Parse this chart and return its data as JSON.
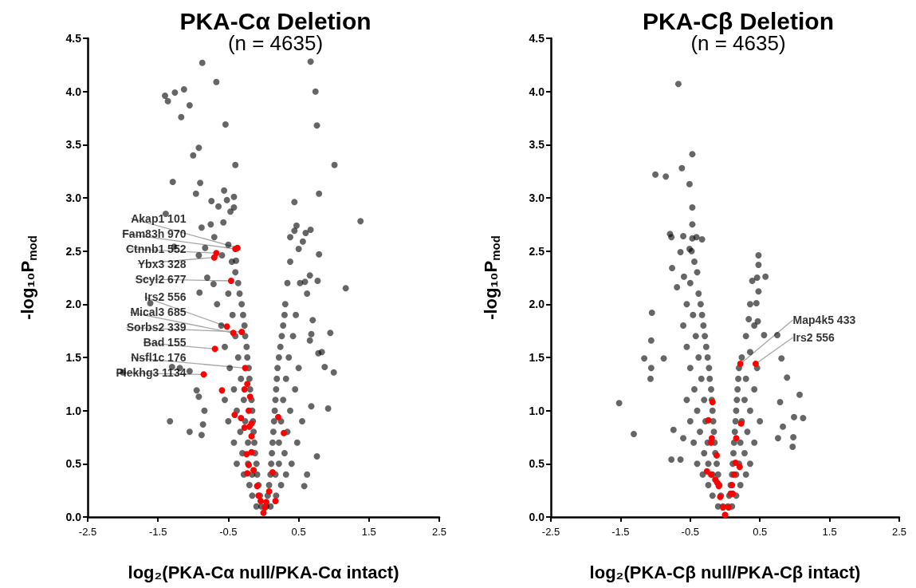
{
  "chart_data": [
    {
      "type": "scatter",
      "title": "PKA-Cα Deletion",
      "subtitle": "(n = 4635)",
      "xlabel": "log₂(PKA-Cα null/PKA-Cα intact)",
      "ylabel": "-log₁₀P$_{mod}$",
      "xlim": [
        -2.5,
        2.5
      ],
      "ylim": [
        0,
        4.5
      ],
      "xticks": [
        -2.5,
        -1.5,
        -0.5,
        0.5,
        1.5,
        2.5
      ],
      "yticks": [
        {
          "value": 0,
          "label": "0.0"
        },
        {
          "value": 0.5,
          "label": "0.5"
        },
        {
          "value": 1,
          "label": "1.0"
        },
        {
          "value": 1.5,
          "label": "1.5"
        },
        {
          "value": 2,
          "label": "2.0"
        },
        {
          "value": 2.5,
          "label": "2.5"
        },
        {
          "value": 3,
          "label": "3.0"
        },
        {
          "value": 3.5,
          "label": "3.5"
        },
        {
          "value": 4,
          "label": "4.0"
        },
        {
          "value": 4.5,
          "label": "4.5"
        }
      ],
      "grid": false,
      "marker": "circle",
      "series": [
        {
          "color": "#000000",
          "x": [
            -0.87,
            0.67,
            -0.67,
            -1.4,
            -1.36,
            -1.26,
            -1.13,
            -1.05,
            -1.17,
            0.74,
            0.76,
            -0.54,
            -0.92,
            -1.0,
            -0.4,
            1.01,
            -1.29,
            -0.9,
            -0.96,
            -0.56,
            -0.42,
            -0.52,
            -0.74,
            -0.64,
            -0.42,
            -0.47,
            0.44,
            0.79,
            -1.39,
            -0.57,
            -0.88,
            -0.75,
            1.38,
            0.47,
            0.44,
            0.67,
            0.6,
            0.38,
            0.56,
            0.5,
            0.79,
            -1.27,
            -0.7,
            -0.5,
            -0.83,
            -0.92,
            -0.59,
            -0.39,
            -0.8,
            -0.71,
            -0.91,
            1.17,
            0.66,
            0.77,
            0.59,
            0.52,
            0.62,
            -1.61,
            0.95,
            1.0,
            0.87,
            0.83,
            0.78,
            0.68,
            0.66,
            0.7,
            -2.0,
            -1.3,
            -1.19,
            -1.05,
            -0.95,
            -0.92,
            -0.84,
            -1.33,
            -1.05,
            -0.88,
            -0.86,
            0.92,
            0.68,
            0.76,
            0.62,
            0.58,
            -0.03,
            -0.1,
            -0.05,
            -0.16,
            -0.07,
            -0.2,
            -0.09,
            -0.16,
            -0.28,
            -0.1,
            -0.22,
            -0.38,
            -0.12,
            -0.3,
            -0.13,
            -0.22,
            -0.42,
            -0.14,
            -0.33,
            -0.15,
            -0.26,
            -0.5,
            -0.16,
            -0.38,
            -0.17,
            -0.28,
            -0.55,
            -0.19,
            -0.42,
            -0.2,
            -0.32,
            -0.21,
            -0.48,
            -0.23,
            -0.36,
            -0.24,
            -0.55,
            -0.26,
            -0.4,
            -0.27,
            -0.6,
            -0.29,
            -0.44,
            -0.31,
            -0.66,
            -0.34,
            -0.5,
            -0.36,
            -0.4,
            -0.45,
            0.04,
            0.1,
            0.06,
            0.18,
            0.08,
            0.25,
            0.1,
            0.17,
            0.32,
            0.11,
            0.22,
            0.4,
            0.12,
            0.3,
            0.13,
            0.22,
            0.48,
            0.14,
            0.34,
            0.15,
            0.25,
            0.55,
            0.16,
            0.38,
            0.17,
            0.28,
            0.18,
            0.45,
            0.19,
            0.32,
            0.2,
            0.5,
            0.22,
            0.36,
            0.24,
            0.26,
            0.42,
            0.28,
            0.3,
            0.46,
            0.31,
            0.34,
            0.38
          ],
          "values": [
            4.27,
            4.28,
            4.09,
            3.96,
            3.91,
            3.99,
            4.02,
            3.87,
            3.76,
            4.0,
            3.68,
            3.69,
            3.47,
            3.4,
            3.31,
            3.31,
            3.15,
            3.14,
            3.04,
            3.07,
            3.01,
            2.98,
            2.97,
            2.92,
            2.91,
            2.87,
            2.96,
            3.04,
            2.85,
            2.77,
            2.72,
            2.75,
            2.78,
            2.74,
            2.69,
            2.7,
            2.67,
            2.63,
            2.59,
            2.52,
            2.47,
            2.54,
            2.63,
            2.56,
            2.53,
            2.46,
            2.46,
            2.41,
            2.25,
            2.19,
            2.11,
            2.15,
            2.27,
            2.22,
            2.21,
            2.2,
            2.1,
            2.01,
            1.73,
            1.36,
            1.41,
            1.55,
            1.54,
            1.72,
            1.66,
            1.85,
            1.36,
            1.41,
            1.4,
            1.37,
            1.19,
            1.13,
            1.0,
            0.9,
            0.8,
            0.77,
            0.87,
            1.02,
            1.04,
            0.57,
            0.4,
            0.29,
            0.1,
            0.1,
            0.2,
            0.2,
            0.3,
            0.3,
            0.4,
            0.4,
            0.4,
            0.5,
            0.5,
            0.5,
            0.6,
            0.6,
            0.7,
            0.7,
            0.7,
            0.8,
            0.8,
            0.9,
            0.9,
            0.9,
            1.0,
            1.0,
            1.1,
            1.1,
            1.1,
            1.2,
            1.2,
            1.3,
            1.3,
            1.4,
            1.4,
            1.5,
            1.5,
            1.6,
            1.6,
            1.7,
            1.7,
            1.8,
            1.8,
            1.9,
            1.9,
            2.0,
            2.0,
            2.1,
            2.1,
            2.2,
            2.3,
            2.4,
            0.1,
            0.1,
            0.2,
            0.2,
            0.3,
            0.3,
            0.4,
            0.4,
            0.4,
            0.5,
            0.5,
            0.5,
            0.6,
            0.6,
            0.7,
            0.7,
            0.7,
            0.8,
            0.8,
            0.9,
            0.9,
            0.9,
            1.0,
            1.0,
            1.1,
            1.1,
            1.2,
            1.2,
            1.3,
            1.3,
            1.4,
            1.4,
            1.5,
            1.5,
            1.6,
            1.7,
            1.7,
            1.8,
            1.9,
            1.9,
            2.0,
            2.2,
            2.4
          ]
        },
        {
          "color": "#ff0000",
          "x": [
            -0.37,
            -0.4,
            -0.67,
            -0.7,
            -0.46,
            -0.52,
            -0.43,
            -0.31,
            -0.69,
            -0.26,
            -0.85,
            -0.59,
            -0.27,
            -0.23,
            -0.19,
            -0.21,
            -0.41,
            -0.32,
            -0.27,
            -0.2,
            -0.17,
            -0.17,
            -0.17,
            -0.24,
            -0.21,
            -0.23,
            -0.14,
            -0.09,
            -0.07,
            -0.04,
            0,
            0.02,
            0.04,
            0.08,
            0.17,
            0.13,
            0.21,
            0.29
          ],
          "values": [
            2.53,
            2.52,
            2.48,
            2.44,
            2.22,
            1.79,
            1.73,
            1.74,
            1.58,
            1.4,
            1.34,
            1.19,
            1.2,
            1.25,
            1.13,
            1.0,
            0.96,
            0.93,
            0.84,
            0.85,
            0.88,
            0.76,
            0.61,
            0.59,
            0.49,
            0.41,
            0.44,
            0.29,
            0.2,
            0.15,
            0.04,
            0.09,
            0.14,
            0.24,
            0.15,
            0.42,
            0.94,
            0.79
          ]
        }
      ],
      "annotations": [
        {
          "text": "Akap1 101",
          "x": -0.37,
          "y": 2.53
        },
        {
          "text": "Fam83h 970",
          "x": -0.4,
          "y": 2.52
        },
        {
          "text": "Ctnnb1 552",
          "x": -0.67,
          "y": 2.48
        },
        {
          "text": "Ybx3 328",
          "x": -0.7,
          "y": 2.44
        },
        {
          "text": "Scyl2 677",
          "x": -0.46,
          "y": 2.22
        },
        {
          "text": "Irs2 556",
          "x": -0.52,
          "y": 1.79
        },
        {
          "text": "Mical3 685",
          "x": -0.43,
          "y": 1.73
        },
        {
          "text": "Sorbs2 339",
          "x": -0.31,
          "y": 1.74
        },
        {
          "text": "Bad 155",
          "x": -0.69,
          "y": 1.58
        },
        {
          "text": "Nsfl1c 176",
          "x": -0.26,
          "y": 1.4
        },
        {
          "text": "Plekhg3 1134",
          "x": -0.85,
          "y": 1.34
        }
      ]
    },
    {
      "type": "scatter",
      "title": "PKA-Cβ Deletion",
      "subtitle": "(n = 4635)",
      "xlabel": "log₂(PKA-Cβ null/PKA-Cβ intact)",
      "ylabel": "-log₁₀P$_{mod}$",
      "xlim": [
        -2.5,
        2.5
      ],
      "ylim": [
        0,
        4.5
      ],
      "xticks": [
        -2.5,
        -1.5,
        -0.5,
        0.5,
        1.5,
        2.5
      ],
      "yticks": [
        {
          "value": 0,
          "label": "0.0"
        },
        {
          "value": 0.5,
          "label": "0.5"
        },
        {
          "value": 1,
          "label": "1.0"
        },
        {
          "value": 1.5,
          "label": "1.5"
        },
        {
          "value": 2,
          "label": "2.0"
        },
        {
          "value": 2.5,
          "label": "2.5"
        },
        {
          "value": 3,
          "label": "3.0"
        },
        {
          "value": 3.5,
          "label": "3.5"
        },
        {
          "value": 4,
          "label": "4.0"
        },
        {
          "value": 4.5,
          "label": "4.5"
        }
      ],
      "grid": false,
      "marker": "circle",
      "series": [
        {
          "color": "#000000",
          "x": [
            -0.67,
            -0.47,
            -1.0,
            -0.85,
            -0.62,
            -0.51,
            -0.47,
            -0.47,
            -0.79,
            -0.77,
            -0.6,
            -0.47,
            -0.41,
            -0.33,
            -0.64,
            -0.51,
            -0.76,
            -0.59,
            -0.69,
            -1.05,
            -1.16,
            -1.06,
            -0.88,
            -1.06,
            -1.07,
            -1.52,
            -1.31,
            0.48,
            0.48,
            0.58,
            0.46,
            0.39,
            0.48,
            0.45,
            0.47,
            0.34,
            0.56,
            0.75,
            0.81,
            0.89,
            1.07,
            1.12,
            0.99,
            0.98,
            0.97,
            0.79,
            0.83,
            0.76,
            -0.77,
            -0.64,
            -0.74,
            -0.6,
            -0.03,
            -0.1,
            -0.06,
            -0.18,
            -0.08,
            -0.24,
            -0.1,
            -0.18,
            -0.32,
            -0.12,
            -0.24,
            -0.4,
            -0.14,
            -0.3,
            -0.15,
            -0.25,
            -0.45,
            -0.16,
            -0.36,
            -0.17,
            -0.28,
            -0.5,
            -0.18,
            -0.4,
            -0.19,
            -0.3,
            -0.55,
            -0.2,
            -0.44,
            -0.22,
            -0.34,
            -0.23,
            -0.5,
            -0.25,
            -0.38,
            -0.27,
            -0.55,
            -0.29,
            -0.42,
            -0.31,
            -0.6,
            -0.33,
            -0.46,
            -0.35,
            -0.55,
            -0.38,
            -0.5,
            -0.4,
            -0.44,
            -0.48,
            0.04,
            0.1,
            0.06,
            0.16,
            0.08,
            0.22,
            0.1,
            0.16,
            0.3,
            0.11,
            0.2,
            0.36,
            0.12,
            0.28,
            0.13,
            0.22,
            0.42,
            0.14,
            0.32,
            0.15,
            0.24,
            0.5,
            0.16,
            0.36,
            0.17,
            0.28,
            0.18,
            0.42,
            0.19,
            0.3,
            0.2,
            0.46,
            0.24,
            0.36,
            0.3,
            0.42,
            0.36
          ],
          "values": [
            4.07,
            3.41,
            3.22,
            3.2,
            3.28,
            3.13,
            2.91,
            2.75,
            2.66,
            2.63,
            2.64,
            2.62,
            2.63,
            2.61,
            2.49,
            2.52,
            2.34,
            2.26,
            2.16,
            1.92,
            1.49,
            1.66,
            1.49,
            1.4,
            1.3,
            1.07,
            0.78,
            2.46,
            2.37,
            2.26,
            2.25,
            2.22,
            2.12,
            2.01,
            1.84,
            1.86,
            1.71,
            1.71,
            1.49,
            1.31,
            1.15,
            0.93,
            0.94,
            0.75,
            0.66,
            1.08,
            0.85,
            0.74,
            0.54,
            0.54,
            0.82,
            0.74,
            0.1,
            0.1,
            0.2,
            0.2,
            0.3,
            0.3,
            0.4,
            0.4,
            0.4,
            0.5,
            0.5,
            0.5,
            0.6,
            0.6,
            0.7,
            0.7,
            0.7,
            0.8,
            0.8,
            0.9,
            0.9,
            0.9,
            1.0,
            1.0,
            1.1,
            1.1,
            1.1,
            1.2,
            1.2,
            1.3,
            1.3,
            1.4,
            1.4,
            1.5,
            1.5,
            1.6,
            1.6,
            1.7,
            1.7,
            1.8,
            1.8,
            1.9,
            1.9,
            2.0,
            2.0,
            2.1,
            2.2,
            2.3,
            2.4,
            2.5,
            0.1,
            0.1,
            0.2,
            0.2,
            0.3,
            0.3,
            0.4,
            0.4,
            0.4,
            0.5,
            0.5,
            0.5,
            0.6,
            0.6,
            0.7,
            0.7,
            0.7,
            0.8,
            0.8,
            0.9,
            0.9,
            0.9,
            1.0,
            1.0,
            1.1,
            1.1,
            1.2,
            1.2,
            1.3,
            1.3,
            1.4,
            1.4,
            1.5,
            1.55,
            1.7,
            1.8,
            2.0
          ]
        },
        {
          "color": "#ff0000",
          "x": [
            0.22,
            0.44,
            -0.18,
            -0.24,
            -0.19,
            -0.2,
            -0.12,
            -0.26,
            -0.2,
            -0.14,
            -0.11,
            -0.09,
            -0.07,
            -0.03,
            0,
            0.05,
            0.08,
            0.1,
            0.13,
            0.15,
            0.21,
            0.16,
            0.23,
            0.11
          ],
          "values": [
            1.44,
            1.44,
            1.08,
            0.91,
            0.74,
            0.7,
            0.58,
            0.43,
            0.4,
            0.35,
            0.32,
            0.29,
            0.19,
            0.09,
            0.02,
            0.09,
            0.22,
            0.3,
            0.4,
            0.51,
            0.47,
            0.74,
            0.88,
            0.22
          ]
        }
      ],
      "annotations": [
        {
          "text": "Map4k5 433",
          "x": 0.22,
          "y": 1.44
        },
        {
          "text": "Irs2 556",
          "x": 0.44,
          "y": 1.44
        }
      ]
    }
  ]
}
